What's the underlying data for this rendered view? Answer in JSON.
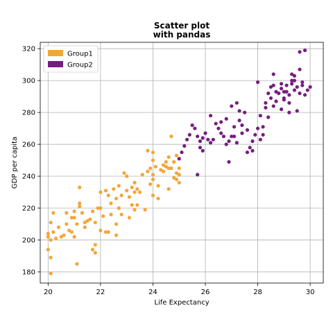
{
  "chart_data": {
    "type": "scatter",
    "title": "Scatter plot\nwith pandas",
    "xlabel": "Life Expectancy",
    "ylabel": "GDP per capita",
    "xlim": [
      19.7,
      30.5
    ],
    "ylim": [
      173,
      324
    ],
    "xticks": [
      20,
      22,
      24,
      26,
      28,
      30
    ],
    "yticks": [
      180,
      200,
      220,
      240,
      260,
      280,
      300,
      320
    ],
    "grid": true,
    "legend_position": "top-left",
    "series": [
      {
        "name": "Group1",
        "color": "#f4a53a",
        "points": [
          [
            20.1,
            179
          ],
          [
            20.0,
            194
          ],
          [
            20.1,
            189
          ],
          [
            20.0,
            202
          ],
          [
            20.1,
            200
          ],
          [
            20.0,
            204
          ],
          [
            20.2,
            205
          ],
          [
            20.1,
            211
          ],
          [
            20.2,
            217
          ],
          [
            20.3,
            201
          ],
          [
            20.5,
            202
          ],
          [
            20.4,
            208
          ],
          [
            20.6,
            203
          ],
          [
            20.7,
            210
          ],
          [
            20.8,
            206
          ],
          [
            20.9,
            205
          ],
          [
            20.7,
            217
          ],
          [
            21.0,
            202
          ],
          [
            21.0,
            214
          ],
          [
            21.1,
            210
          ],
          [
            20.9,
            214
          ],
          [
            21.0,
            218
          ],
          [
            21.1,
            185
          ],
          [
            21.2,
            221
          ],
          [
            21.2,
            223
          ],
          [
            21.2,
            233
          ],
          [
            21.3,
            217
          ],
          [
            21.4,
            208
          ],
          [
            21.4,
            211
          ],
          [
            21.5,
            212
          ],
          [
            21.6,
            213
          ],
          [
            21.7,
            218
          ],
          [
            21.7,
            194
          ],
          [
            21.8,
            197
          ],
          [
            21.8,
            192
          ],
          [
            21.8,
            211
          ],
          [
            21.9,
            220
          ],
          [
            22.0,
            220
          ],
          [
            22.0,
            230
          ],
          [
            22.1,
            215
          ],
          [
            22.0,
            206
          ],
          [
            22.2,
            205
          ],
          [
            22.3,
            205
          ],
          [
            22.2,
            231
          ],
          [
            22.3,
            228
          ],
          [
            22.4,
            223
          ],
          [
            22.4,
            216
          ],
          [
            22.5,
            232
          ],
          [
            22.6,
            226
          ],
          [
            22.6,
            210
          ],
          [
            22.6,
            203
          ],
          [
            22.7,
            220
          ],
          [
            22.7,
            234
          ],
          [
            22.8,
            216
          ],
          [
            22.8,
            228
          ],
          [
            22.9,
            242
          ],
          [
            23.0,
            240
          ],
          [
            23.0,
            231
          ],
          [
            23.1,
            227
          ],
          [
            23.1,
            214
          ],
          [
            23.2,
            222
          ],
          [
            23.2,
            233
          ],
          [
            23.3,
            236
          ],
          [
            23.3,
            230
          ],
          [
            23.3,
            219
          ],
          [
            23.4,
            222
          ],
          [
            23.4,
            232
          ],
          [
            23.5,
            230
          ],
          [
            23.6,
            241
          ],
          [
            23.7,
            219
          ],
          [
            23.8,
            243
          ],
          [
            23.8,
            256
          ],
          [
            23.9,
            245
          ],
          [
            23.9,
            235
          ],
          [
            24.0,
            250
          ],
          [
            24.0,
            241
          ],
          [
            24.0,
            228
          ],
          [
            24.1,
            246
          ],
          [
            24.0,
            255
          ],
          [
            24.2,
            234
          ],
          [
            24.2,
            226
          ],
          [
            24.3,
            244
          ],
          [
            24.4,
            243
          ],
          [
            24.4,
            247
          ],
          [
            24.5,
            246
          ],
          [
            24.5,
            249
          ],
          [
            24.6,
            252
          ],
          [
            24.6,
            245
          ],
          [
            24.7,
            265
          ],
          [
            24.7,
            245
          ],
          [
            24.8,
            239
          ],
          [
            24.8,
            249
          ],
          [
            24.9,
            242
          ],
          [
            24.9,
            253
          ],
          [
            25.0,
            245
          ],
          [
            25.0,
            241
          ],
          [
            25.0,
            236
          ],
          [
            24.9,
            238
          ],
          [
            24.6,
            232
          ],
          [
            24.0,
            238
          ]
        ]
      },
      {
        "name": "Group2",
        "color": "#761e7f",
        "points": [
          [
            25.0,
            251
          ],
          [
            25.1,
            255
          ],
          [
            25.2,
            259
          ],
          [
            25.3,
            263
          ],
          [
            25.4,
            266
          ],
          [
            25.5,
            272
          ],
          [
            25.6,
            270
          ],
          [
            25.7,
            265
          ],
          [
            25.8,
            262
          ],
          [
            25.8,
            258
          ],
          [
            25.7,
            241
          ],
          [
            25.9,
            256
          ],
          [
            25.9,
            264
          ],
          [
            26.0,
            267
          ],
          [
            26.1,
            263
          ],
          [
            26.2,
            261
          ],
          [
            26.2,
            278
          ],
          [
            26.3,
            263
          ],
          [
            26.4,
            273
          ],
          [
            26.5,
            270
          ],
          [
            26.6,
            274
          ],
          [
            26.6,
            267
          ],
          [
            26.7,
            265
          ],
          [
            26.8,
            260
          ],
          [
            26.8,
            276
          ],
          [
            26.9,
            249
          ],
          [
            26.9,
            262
          ],
          [
            27.0,
            265
          ],
          [
            27.0,
            284
          ],
          [
            27.1,
            271
          ],
          [
            27.1,
            265
          ],
          [
            27.2,
            261
          ],
          [
            27.2,
            286
          ],
          [
            27.3,
            275
          ],
          [
            27.3,
            281
          ],
          [
            27.4,
            272
          ],
          [
            27.4,
            267
          ],
          [
            27.5,
            280
          ],
          [
            27.6,
            269
          ],
          [
            27.7,
            258
          ],
          [
            27.8,
            256
          ],
          [
            27.8,
            262
          ],
          [
            27.9,
            266
          ],
          [
            28.0,
            270
          ],
          [
            28.0,
            299
          ],
          [
            28.1,
            278
          ],
          [
            28.1,
            263
          ],
          [
            28.2,
            271
          ],
          [
            28.3,
            283
          ],
          [
            28.3,
            286
          ],
          [
            28.4,
            277
          ],
          [
            28.4,
            292
          ],
          [
            28.5,
            289
          ],
          [
            28.5,
            296
          ],
          [
            28.6,
            284
          ],
          [
            28.6,
            304
          ],
          [
            28.7,
            293
          ],
          [
            28.7,
            287
          ],
          [
            28.8,
            292
          ],
          [
            28.9,
            298
          ],
          [
            28.9,
            282
          ],
          [
            29.0,
            289
          ],
          [
            29.0,
            293
          ],
          [
            29.1,
            297
          ],
          [
            29.1,
            293
          ],
          [
            29.2,
            286
          ],
          [
            29.2,
            291
          ],
          [
            29.3,
            298
          ],
          [
            29.3,
            304
          ],
          [
            29.4,
            300
          ],
          [
            29.4,
            303
          ],
          [
            29.5,
            281
          ],
          [
            29.5,
            296
          ],
          [
            29.6,
            292
          ],
          [
            29.6,
            318
          ],
          [
            29.7,
            299
          ],
          [
            29.8,
            319
          ],
          [
            29.8,
            291
          ],
          [
            29.9,
            294
          ],
          [
            30.0,
            296
          ],
          [
            29.2,
            280
          ],
          [
            28.2,
            266
          ],
          [
            28.6,
            297
          ],
          [
            29.4,
            294
          ],
          [
            29.0,
            288
          ],
          [
            27.6,
            255
          ],
          [
            28.9,
            295
          ],
          [
            29.3,
            300
          ],
          [
            29.7,
            297
          ],
          [
            29.6,
            307
          ]
        ]
      }
    ]
  }
}
